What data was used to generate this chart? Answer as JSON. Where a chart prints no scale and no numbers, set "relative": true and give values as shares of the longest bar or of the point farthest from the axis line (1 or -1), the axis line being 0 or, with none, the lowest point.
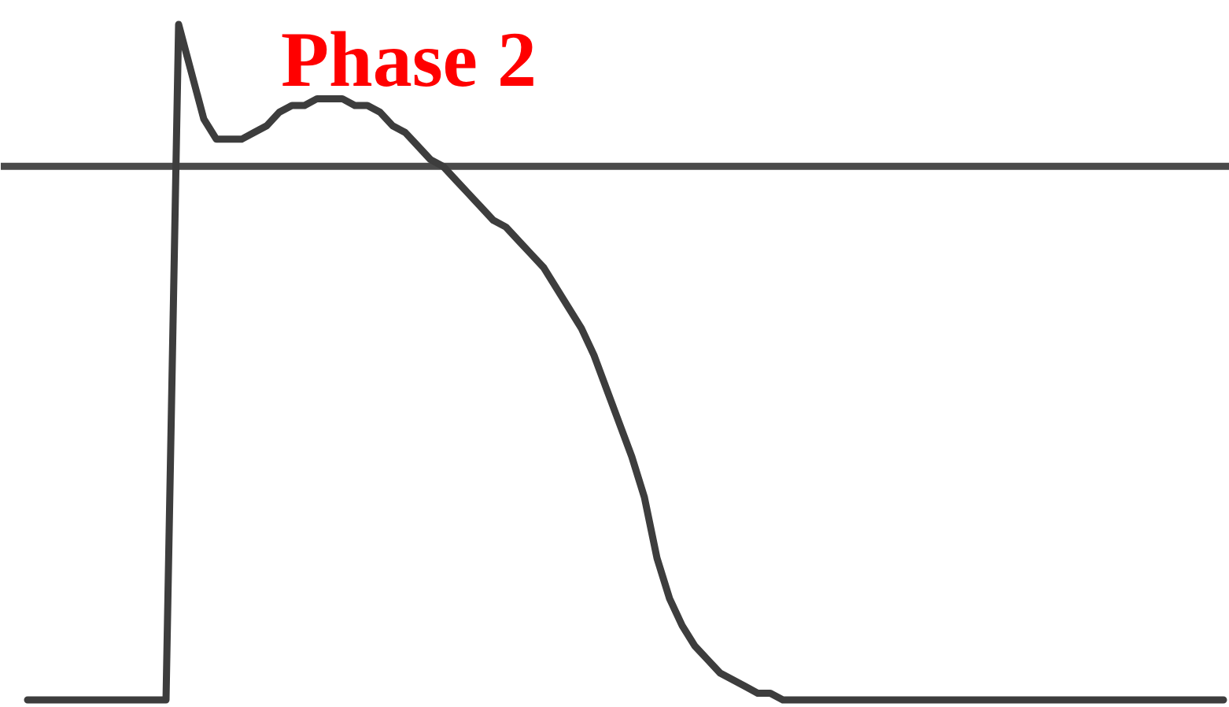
{
  "chart_data": {
    "type": "line",
    "relative": true,
    "annotations": [
      "Phase 2"
    ],
    "categories": [
      null,
      null,
      null,
      null,
      null,
      null,
      null,
      null,
      null,
      null,
      null,
      null,
      null,
      null,
      null,
      null,
      null,
      null,
      null,
      null,
      null,
      null,
      null,
      null,
      null,
      null,
      null,
      null,
      null,
      null,
      null,
      null,
      null,
      null,
      null,
      null,
      null,
      null,
      null,
      null,
      null,
      null,
      null,
      null,
      null,
      null,
      null,
      null,
      null,
      null,
      null,
      null,
      null,
      null,
      null,
      null,
      null,
      null,
      null,
      null,
      null,
      null,
      null,
      null,
      null,
      null,
      null,
      null,
      null,
      null,
      null,
      null,
      null,
      null,
      null,
      null,
      null,
      null,
      null,
      null,
      null,
      null,
      null,
      null,
      null,
      null,
      null,
      null,
      null,
      null,
      null,
      null,
      null,
      null,
      null,
      null
    ],
    "series": [
      {
        "color": "#3d3d3d",
        "values": [
          0,
          0,
          0,
          0,
          0,
          0,
          0,
          0,
          0,
          0,
          0,
          0,
          1.0,
          0.93,
          0.86,
          0.83,
          0.83,
          0.83,
          0.84,
          0.85,
          0.87,
          0.88,
          0.88,
          0.89,
          0.89,
          0.89,
          0.88,
          0.88,
          0.87,
          0.85,
          0.84,
          0.82,
          0.8,
          0.79,
          0.77,
          0.75,
          0.73,
          0.71,
          0.7,
          0.68,
          0.66,
          0.64,
          0.61,
          0.58,
          0.55,
          0.51,
          0.46,
          0.41,
          0.36,
          0.3,
          0.21,
          0.15,
          0.11,
          0.08,
          0.06,
          0.04,
          0.03,
          0.02,
          0.01,
          0.01,
          0,
          0,
          0,
          0,
          0,
          0,
          0,
          0,
          0,
          0,
          0,
          0,
          0,
          0,
          0,
          0,
          0,
          0,
          0,
          0,
          0,
          0,
          0,
          0,
          0,
          0,
          0,
          0,
          0,
          0,
          0,
          0,
          0,
          0,
          0,
          0
        ]
      }
    ],
    "ref_lines": [
      {
        "axis": "y",
        "value": 0.79,
        "color": "#4a4a4a"
      }
    ]
  }
}
